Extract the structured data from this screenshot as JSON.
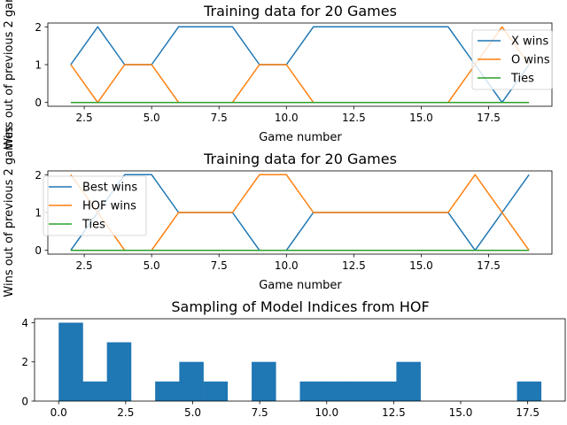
{
  "chart_data": [
    {
      "type": "line",
      "title": "Training data for 20 Games",
      "xlabel": "Game number",
      "ylabel": "Wins out of previous 2 games",
      "xlim": [
        1.15,
        19.85
      ],
      "ylim": [
        -0.1,
        2.1
      ],
      "xticks": [
        2.5,
        5.0,
        7.5,
        10.0,
        12.5,
        15.0,
        17.5
      ],
      "xtick_labels": [
        "2.5",
        "5.0",
        "7.5",
        "10.0",
        "12.5",
        "15.0",
        "17.5"
      ],
      "yticks": [
        0,
        1,
        2
      ],
      "ytick_labels": [
        "0",
        "1",
        "2"
      ],
      "legend_position": "upper right",
      "x": [
        2,
        3,
        4,
        5,
        6,
        7,
        8,
        9,
        10,
        11,
        12,
        13,
        14,
        15,
        16,
        17,
        18,
        19
      ],
      "series": [
        {
          "name": "X wins",
          "color": "#1f77b4",
          "values": [
            1,
            2,
            1,
            1,
            2,
            2,
            2,
            1,
            1,
            2,
            2,
            2,
            2,
            2,
            2,
            1,
            0,
            1
          ]
        },
        {
          "name": "O wins",
          "color": "#ff7f0e",
          "values": [
            1,
            0,
            1,
            1,
            0,
            0,
            0,
            1,
            1,
            0,
            0,
            0,
            0,
            0,
            0,
            1,
            2,
            1
          ]
        },
        {
          "name": "Ties",
          "color": "#2ca02c",
          "values": [
            0,
            0,
            0,
            0,
            0,
            0,
            0,
            0,
            0,
            0,
            0,
            0,
            0,
            0,
            0,
            0,
            0,
            0
          ]
        }
      ]
    },
    {
      "type": "line",
      "title": "Training data for 20 Games",
      "xlabel": "Game number",
      "ylabel": "Wins out of previous 2 games",
      "xlim": [
        1.15,
        19.85
      ],
      "ylim": [
        -0.1,
        2.1
      ],
      "xticks": [
        2.5,
        5.0,
        7.5,
        10.0,
        12.5,
        15.0,
        17.5
      ],
      "xtick_labels": [
        "2.5",
        "5.0",
        "7.5",
        "10.0",
        "12.5",
        "15.0",
        "17.5"
      ],
      "yticks": [
        0,
        1,
        2
      ],
      "ytick_labels": [
        "0",
        "1",
        "2"
      ],
      "legend_position": "upper left",
      "x": [
        2,
        3,
        4,
        5,
        6,
        7,
        8,
        9,
        10,
        11,
        12,
        13,
        14,
        15,
        16,
        17,
        18,
        19
      ],
      "series": [
        {
          "name": "Best wins",
          "color": "#1f77b4",
          "values": [
            0,
            1,
            2,
            2,
            1,
            1,
            1,
            0,
            0,
            1,
            1,
            1,
            1,
            1,
            1,
            0,
            1,
            2
          ]
        },
        {
          "name": "HOF wins",
          "color": "#ff7f0e",
          "values": [
            2,
            1,
            0,
            0,
            1,
            1,
            1,
            2,
            2,
            1,
            1,
            1,
            1,
            1,
            1,
            2,
            1,
            0
          ]
        },
        {
          "name": "Ties",
          "color": "#2ca02c",
          "values": [
            0,
            0,
            0,
            0,
            0,
            0,
            0,
            0,
            0,
            0,
            0,
            0,
            0,
            0,
            0,
            0,
            0,
            0
          ]
        }
      ]
    },
    {
      "type": "bar",
      "title": "Sampling of Model Indices from HOF",
      "xlabel": "",
      "ylabel": "",
      "color": "#1f77b4",
      "xlim": [
        -0.9,
        18.9
      ],
      "ylim": [
        0,
        4.2
      ],
      "xticks": [
        0.0,
        2.5,
        5.0,
        7.5,
        10.0,
        12.5,
        15.0,
        17.5
      ],
      "xtick_labels": [
        "0.0",
        "2.5",
        "5.0",
        "7.5",
        "10.0",
        "12.5",
        "15.0",
        "17.5"
      ],
      "yticks": [
        0,
        2,
        4
      ],
      "ytick_labels": [
        "0",
        "2",
        "4"
      ],
      "bin_edges": [
        0,
        0.9,
        1.8,
        2.7,
        3.6,
        4.5,
        5.4,
        6.3,
        7.2,
        8.1,
        9.0,
        9.9,
        10.8,
        11.7,
        12.6,
        13.5,
        14.4,
        15.3,
        16.2,
        17.1,
        18.0
      ],
      "values": [
        4,
        1,
        3,
        0,
        1,
        2,
        1,
        0,
        2,
        0,
        1,
        1,
        1,
        1,
        2,
        0,
        0,
        0,
        0,
        1
      ]
    }
  ]
}
